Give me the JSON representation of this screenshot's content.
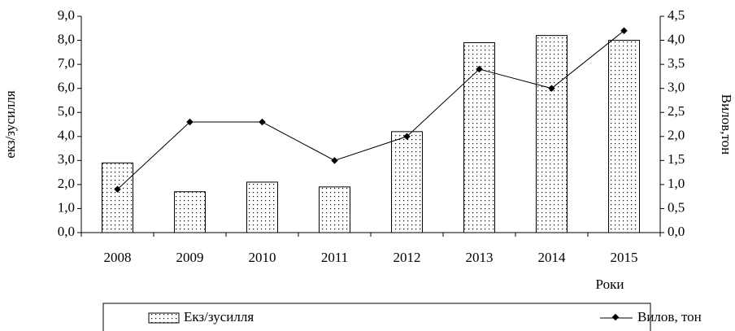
{
  "chart_data": {
    "type": "bar",
    "categories": [
      "2008",
      "2009",
      "2010",
      "2011",
      "2012",
      "2013",
      "2014",
      "2015"
    ],
    "series": [
      {
        "name": "Екз/зусилля",
        "type": "bar",
        "color": "#000000",
        "values": [
          2.9,
          1.7,
          2.1,
          1.9,
          4.2,
          7.9,
          8.2,
          8.0
        ]
      },
      {
        "name": "Вилов, тон",
        "type": "line",
        "axis": "y2",
        "color": "#000000",
        "values": [
          0.9,
          2.3,
          2.3,
          1.5,
          2.0,
          3.4,
          3.0,
          4.2
        ]
      }
    ],
    "ylabel": "екз/зусилля",
    "y2label": "Вилов,тон",
    "xlabel": "Роки",
    "ylim": [
      0,
      9
    ],
    "yticks": [
      {
        "value": 0,
        "label": "0,0"
      },
      {
        "value": 1,
        "label": "1,0"
      },
      {
        "value": 2,
        "label": "2,0"
      },
      {
        "value": 3,
        "label": "3,0"
      },
      {
        "value": 4,
        "label": "4,0"
      },
      {
        "value": 5,
        "label": "5,0"
      },
      {
        "value": 6,
        "label": "6,0"
      },
      {
        "value": 7,
        "label": "7,0"
      },
      {
        "value": 8,
        "label": "8,0"
      },
      {
        "value": 9,
        "label": "9,0"
      }
    ],
    "y2lim": [
      0,
      4.5
    ],
    "y2ticks": [
      {
        "value": 0,
        "label": "0,0"
      },
      {
        "value": 0.5,
        "label": "0,5"
      },
      {
        "value": 1,
        "label": "1,0"
      },
      {
        "value": 1.5,
        "label": "1,5"
      },
      {
        "value": 2,
        "label": "2,0"
      },
      {
        "value": 2.5,
        "label": "2,5"
      },
      {
        "value": 3,
        "label": "3,0"
      },
      {
        "value": 3.5,
        "label": "3,5"
      },
      {
        "value": 4,
        "label": "4,0"
      },
      {
        "value": 4.5,
        "label": "4,5"
      }
    ],
    "grid": false,
    "legend": "bottom"
  }
}
